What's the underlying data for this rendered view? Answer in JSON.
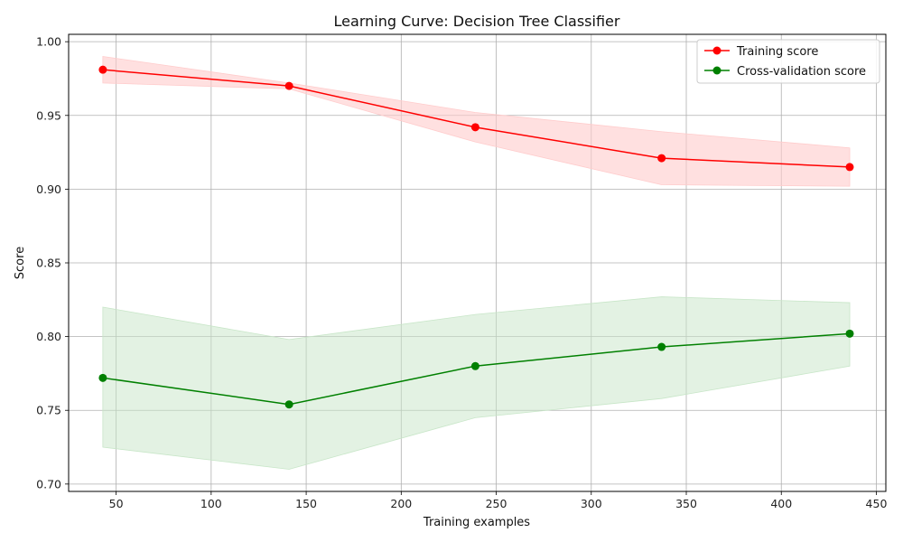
{
  "chart_data": {
    "type": "line",
    "title": "Learning Curve: Decision Tree Classifier",
    "xlabel": "Training examples",
    "ylabel": "Score",
    "xlim": [
      25,
      455
    ],
    "ylim": [
      0.695,
      1.005
    ],
    "x_ticks": [
      50,
      100,
      150,
      200,
      250,
      300,
      350,
      400,
      450
    ],
    "x_tick_labels": [
      "50",
      "100",
      "150",
      "200",
      "250",
      "300",
      "350",
      "400",
      "450"
    ],
    "y_ticks": [
      0.7,
      0.75,
      0.8,
      0.85,
      0.9,
      0.95,
      1.0
    ],
    "y_tick_labels": [
      "0.70",
      "0.75",
      "0.80",
      "0.85",
      "0.90",
      "0.95",
      "1.00"
    ],
    "grid": true,
    "legend_position": "top-right",
    "x": [
      43,
      141,
      239,
      337,
      436
    ],
    "series": [
      {
        "name": "Training score",
        "color": "#ff0000",
        "band_color": "#ffcccc",
        "values": [
          0.981,
          0.97,
          0.942,
          0.921,
          0.915
        ],
        "upper": [
          0.99,
          0.972,
          0.952,
          0.939,
          0.928
        ],
        "lower": [
          0.972,
          0.968,
          0.932,
          0.903,
          0.902
        ]
      },
      {
        "name": "Cross-validation score",
        "color": "#008000",
        "band_color": "#c8e6c8",
        "values": [
          0.772,
          0.754,
          0.78,
          0.793,
          0.802
        ],
        "upper": [
          0.82,
          0.798,
          0.815,
          0.827,
          0.823
        ],
        "lower": [
          0.725,
          0.71,
          0.745,
          0.758,
          0.78
        ]
      }
    ]
  }
}
